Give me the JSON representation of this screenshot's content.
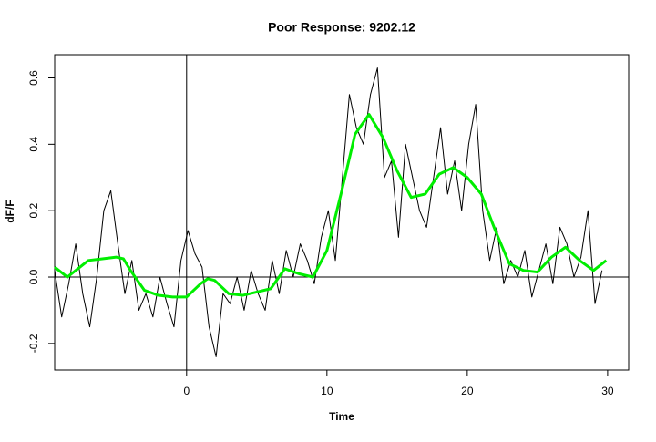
{
  "chart_data": {
    "type": "line",
    "title": "Poor Response: 9202.12",
    "x_label": "Time",
    "y_label": "dF/F",
    "xlim": [
      -9.4,
      31.5
    ],
    "ylim": [
      -0.28,
      0.67
    ],
    "xticks": [
      0,
      10,
      20,
      30
    ],
    "yticks": [
      -0.2,
      {
        "value": 0,
        "label": "0.0"
      },
      0.2,
      0.4,
      0.6
    ],
    "hline": 0,
    "vline": 0,
    "series": [
      {
        "name": "raw",
        "color": "#000000",
        "width": 1,
        "x": [
          -9.4,
          -8.9,
          -8.4,
          -7.9,
          -7.4,
          -6.9,
          -6.4,
          -5.9,
          -5.4,
          -4.9,
          -4.4,
          -3.9,
          -3.4,
          -2.9,
          -2.4,
          -1.9,
          -1.4,
          -0.9,
          -0.4,
          0.1,
          0.6,
          1.1,
          1.6,
          2.1,
          2.6,
          3.1,
          3.6,
          4.1,
          4.6,
          5.1,
          5.6,
          6.1,
          6.6,
          7.1,
          7.6,
          8.1,
          8.6,
          9.1,
          9.6,
          10.1,
          10.6,
          11.1,
          11.6,
          12.1,
          12.6,
          13.1,
          13.6,
          14.1,
          14.6,
          15.1,
          15.6,
          16.1,
          16.6,
          17.1,
          17.6,
          18.1,
          18.6,
          19.1,
          19.6,
          20.1,
          20.6,
          21.1,
          21.6,
          22.1,
          22.6,
          23.1,
          23.6,
          24.1,
          24.6,
          25.1,
          25.6,
          26.1,
          26.6,
          27.1,
          27.6,
          28.1,
          28.6,
          29.1,
          29.6
        ],
        "values": [
          0.02,
          -0.12,
          -0.02,
          0.1,
          -0.05,
          -0.15,
          0.0,
          0.2,
          0.26,
          0.1,
          -0.05,
          0.05,
          -0.1,
          -0.05,
          -0.12,
          0.0,
          -0.08,
          -0.15,
          0.05,
          0.14,
          0.07,
          0.03,
          -0.15,
          -0.24,
          -0.05,
          -0.08,
          0.0,
          -0.1,
          0.02,
          -0.05,
          -0.1,
          0.05,
          -0.05,
          0.08,
          0.0,
          0.1,
          0.05,
          -0.02,
          0.12,
          0.2,
          0.05,
          0.3,
          0.55,
          0.45,
          0.4,
          0.55,
          0.63,
          0.3,
          0.35,
          0.12,
          0.4,
          0.3,
          0.2,
          0.15,
          0.3,
          0.45,
          0.25,
          0.35,
          0.2,
          0.4,
          0.52,
          0.2,
          0.05,
          0.15,
          -0.02,
          0.05,
          0.0,
          0.08,
          -0.06,
          0.02,
          0.1,
          -0.02,
          0.15,
          0.1,
          0.0,
          0.06,
          0.2,
          -0.08,
          0.02
        ]
      },
      {
        "name": "smooth",
        "color": "#00ee00",
        "width": 3,
        "x": [
          -9.4,
          -8.5,
          -7,
          -6,
          -5,
          -4.5,
          -4,
          -3,
          -2,
          -1,
          0,
          0.5,
          1,
          1.5,
          2,
          3,
          4,
          5,
          6,
          7,
          8,
          9,
          10,
          11,
          12,
          13,
          14,
          15,
          16,
          17,
          18,
          19,
          20,
          21,
          22,
          23,
          24,
          25,
          26,
          27,
          28,
          29,
          29.9
        ],
        "values": [
          0.03,
          0.0,
          0.05,
          0.055,
          0.06,
          0.055,
          0.02,
          -0.04,
          -0.055,
          -0.06,
          -0.06,
          -0.04,
          -0.02,
          -0.005,
          -0.01,
          -0.05,
          -0.055,
          -0.045,
          -0.035,
          0.025,
          0.01,
          0.0,
          0.08,
          0.25,
          0.43,
          0.49,
          0.42,
          0.32,
          0.24,
          0.25,
          0.31,
          0.33,
          0.3,
          0.25,
          0.14,
          0.04,
          0.02,
          0.015,
          0.06,
          0.09,
          0.05,
          0.02,
          0.05
        ]
      }
    ]
  }
}
